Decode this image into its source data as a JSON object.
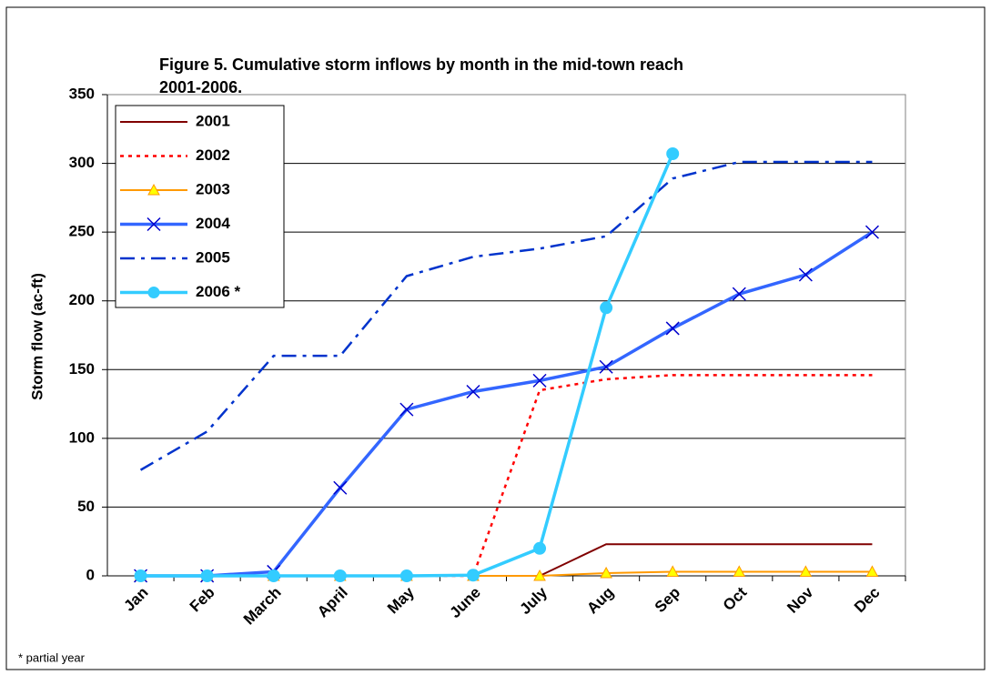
{
  "chart_data": {
    "type": "line",
    "title": [
      "Figure 5.  Cumulative storm inflows by month in the mid-town reach",
      "2001-2006."
    ],
    "y_label": "Storm flow (ac-ft)",
    "footnote": "* partial year",
    "categories": [
      "Jan",
      "Feb",
      "March",
      "April",
      "May",
      "June",
      "July",
      "Aug",
      "Sep",
      "Oct",
      "Nov",
      "Dec"
    ],
    "series": [
      {
        "name": "2001",
        "color": "#800000",
        "style": "solid",
        "marker": "none",
        "width": 2,
        "values": [
          0,
          0,
          0,
          0,
          0,
          0,
          0,
          23,
          23,
          23,
          23,
          23
        ]
      },
      {
        "name": "2002",
        "color": "#ff0000",
        "style": "dot",
        "marker": "none",
        "width": 2.5,
        "values": [
          0,
          0,
          0,
          0,
          0,
          0,
          135,
          143,
          146,
          146,
          146,
          146
        ]
      },
      {
        "name": "2003",
        "color": "#ff9900",
        "style": "solid",
        "marker": "triangle",
        "width": 2,
        "values": [
          0,
          0,
          0,
          0,
          0,
          0,
          0,
          2,
          3,
          3,
          3,
          3
        ]
      },
      {
        "name": "2004",
        "color": "#3366ff",
        "style": "solid",
        "marker": "x",
        "width": 3.5,
        "values": [
          0,
          0,
          3,
          64,
          121,
          134,
          142,
          152,
          180,
          205,
          219,
          250
        ]
      },
      {
        "name": "2005",
        "color": "#0033cc",
        "style": "dashdot",
        "marker": "none",
        "width": 2.5,
        "values": [
          77,
          105,
          160,
          160,
          218,
          232,
          238,
          247,
          289,
          301,
          301,
          301
        ]
      },
      {
        "name": "2006 *",
        "color": "#33ccff",
        "style": "solid",
        "marker": "circle",
        "width": 3.5,
        "values": [
          0,
          0,
          0,
          0,
          0,
          0.5,
          20,
          195,
          307,
          null,
          null,
          null
        ]
      }
    ],
    "ylim": [
      0,
      350
    ],
    "yticks": [
      0,
      50,
      100,
      150,
      200,
      250,
      300,
      350
    ],
    "grid": true,
    "legend": "top-left"
  }
}
